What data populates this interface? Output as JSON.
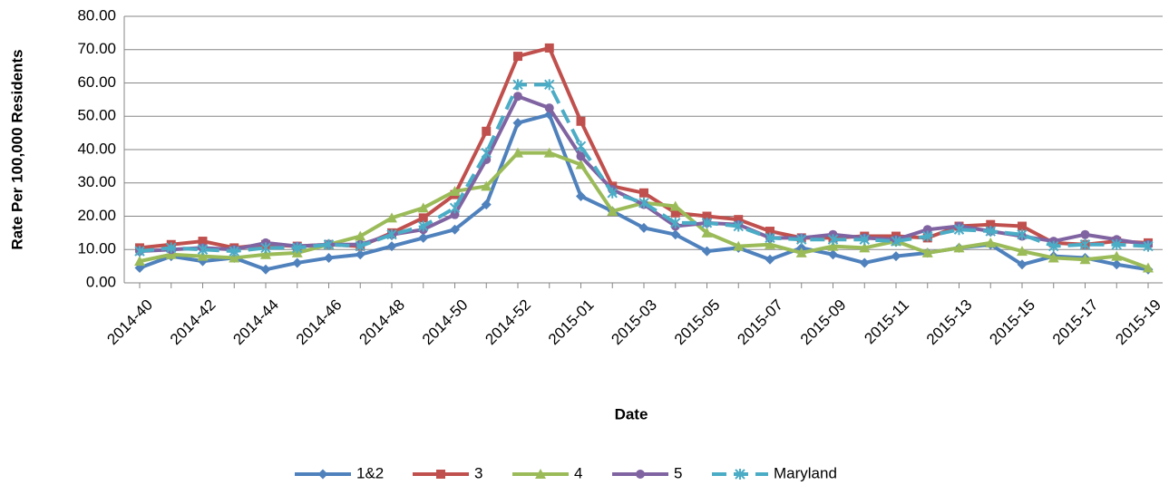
{
  "chart_data": {
    "type": "line",
    "y_label": "Rate Per 100,000 Residents",
    "x_label": "Date",
    "categories": [
      "2014-40",
      null,
      "2014-42",
      null,
      "2014-44",
      null,
      "2014-46",
      null,
      "2014-48",
      null,
      "2014-50",
      null,
      "2014-52",
      null,
      "2015-01",
      null,
      "2015-03",
      null,
      "2015-05",
      null,
      "2015-07",
      null,
      "2015-09",
      null,
      "2015-11",
      null,
      "2015-13",
      null,
      "2015-15",
      null,
      "2015-17",
      null,
      "2015-19"
    ],
    "series": [
      {
        "name": "1&2",
        "color": "#4f81bd",
        "marker": "diamond",
        "dashed": false,
        "values": [
          4.5,
          8,
          6.5,
          7.5,
          4,
          6,
          7.5,
          8.5,
          11,
          13.5,
          16,
          23.5,
          48,
          50.5,
          26,
          21.5,
          16.5,
          14.5,
          9.5,
          10.5,
          7,
          10.5,
          8.5,
          6,
          8,
          9,
          10.5,
          11.5,
          5.5,
          8,
          7.5,
          5.5,
          4
        ]
      },
      {
        "name": "3",
        "color": "#c0504d",
        "marker": "square",
        "dashed": false,
        "values": [
          10.5,
          11.5,
          12.5,
          10.5,
          11.5,
          11,
          11.5,
          11,
          15,
          19.5,
          26.5,
          45.5,
          68,
          70.5,
          48.5,
          29,
          27,
          21,
          20,
          19,
          15.5,
          13.5,
          13.5,
          14,
          14,
          13.5,
          17,
          17.5,
          17,
          12,
          11.5,
          12.5,
          12
        ]
      },
      {
        "name": "4",
        "color": "#9bbb59",
        "marker": "triangle",
        "dashed": false,
        "values": [
          6.5,
          8.5,
          8,
          7.5,
          8.5,
          9,
          11.5,
          14,
          19.5,
          22.5,
          27.5,
          29,
          39,
          39,
          35.5,
          21.5,
          24,
          23,
          15,
          11,
          11.5,
          9,
          11,
          10.5,
          12.5,
          9,
          10.5,
          12,
          9.5,
          7.5,
          7,
          8,
          4.5
        ]
      },
      {
        "name": "5",
        "color": "#8064a2",
        "marker": "circle",
        "dashed": false,
        "values": [
          9.5,
          10,
          10.5,
          10,
          12,
          11,
          11.5,
          11.5,
          14.5,
          16,
          20.5,
          37,
          56,
          52.5,
          38,
          28,
          23.5,
          17,
          18,
          17.5,
          13.5,
          13.5,
          14.5,
          13.5,
          13,
          16,
          17,
          15.5,
          14,
          12.5,
          14.5,
          13,
          11.5
        ]
      },
      {
        "name": "Maryland",
        "color": "#4bacc6",
        "marker": "star",
        "dashed": true,
        "values": [
          9.5,
          10.5,
          10,
          9.5,
          10.5,
          10.5,
          11.5,
          11,
          14.5,
          17,
          22.5,
          39,
          59.5,
          59.5,
          41,
          27,
          24,
          18,
          18,
          17,
          13.5,
          13,
          13,
          13,
          12.5,
          14,
          16,
          15.5,
          14.5,
          11,
          11.5,
          11.5,
          11
        ]
      }
    ],
    "ylim": [
      0,
      80
    ],
    "yticks": [
      {
        "value": 0,
        "label": "0.00"
      },
      {
        "value": 10,
        "label": "10.00"
      },
      {
        "value": 20,
        "label": "20.00"
      },
      {
        "value": 30,
        "label": "30.00"
      },
      {
        "value": 40,
        "label": "40.00"
      },
      {
        "value": 50,
        "label": "50.00"
      },
      {
        "value": 60,
        "label": "60.00"
      },
      {
        "value": 70,
        "label": "70.00"
      },
      {
        "value": 80,
        "label": "80.00"
      }
    ],
    "grid": true,
    "legend": "bottom"
  }
}
